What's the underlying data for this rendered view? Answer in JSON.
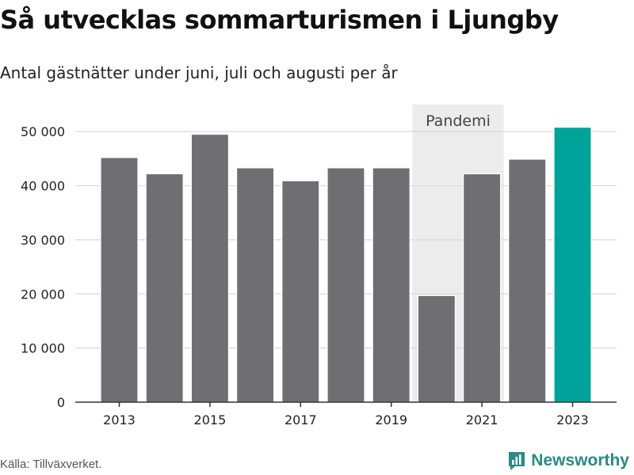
{
  "header": {
    "title": "Så utvecklas sommarturismen i Ljungby",
    "subtitle": "Antal gästnätter under juni, juli och augusti per år"
  },
  "footer": {
    "source": "Källa: Tillväxverket.",
    "brand": "Newsworthy",
    "brand_icon": "newsworthy-logo-icon"
  },
  "colors": {
    "bar": "#6f6e73",
    "highlight": "#00a39a",
    "band": "#ececec",
    "grid": "#d9d9d9",
    "axis": "#333333",
    "brand": "#2a8a86"
  },
  "chart_data": {
    "type": "bar",
    "categories": [
      "2013",
      "2014",
      "2015",
      "2016",
      "2017",
      "2018",
      "2019",
      "2020",
      "2021",
      "2022",
      "2023"
    ],
    "values": [
      45200,
      42200,
      49500,
      43300,
      40900,
      43300,
      43300,
      19700,
      42200,
      44900,
      50800
    ],
    "highlight_category": "2023",
    "xtick_labels": [
      "2013",
      "2015",
      "2017",
      "2019",
      "2021",
      "2023"
    ],
    "ytick_values": [
      0,
      10000,
      20000,
      30000,
      40000,
      50000
    ],
    "ytick_labels": [
      "0",
      "10 000",
      "20 000",
      "30 000",
      "40 000",
      "50 000"
    ],
    "ylim": [
      0,
      55000
    ],
    "grid": "horizontal",
    "shaded_band": {
      "from": "2020",
      "to": "2021",
      "label": "Pandemi"
    },
    "xlabel": "",
    "ylabel": ""
  }
}
